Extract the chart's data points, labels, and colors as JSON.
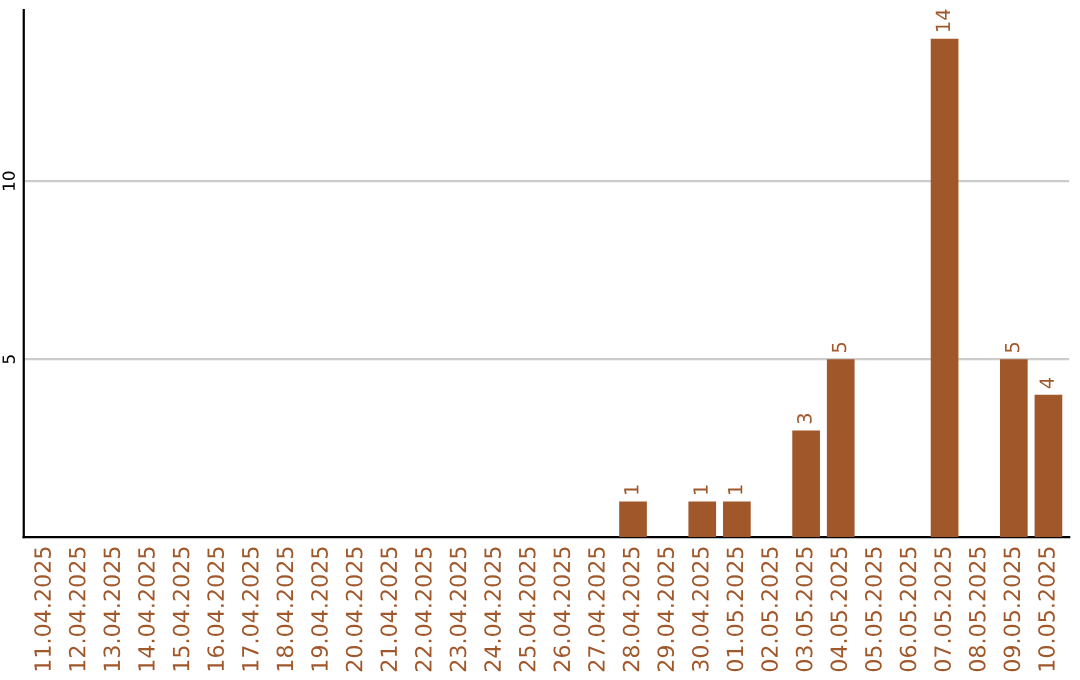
{
  "chart_data": {
    "type": "bar",
    "categories": [
      "11.04.2025",
      "12.04.2025",
      "13.04.2025",
      "14.04.2025",
      "15.04.2025",
      "16.04.2025",
      "17.04.2025",
      "18.04.2025",
      "19.04.2025",
      "20.04.2025",
      "21.04.2025",
      "22.04.2025",
      "23.04.2025",
      "24.04.2025",
      "25.04.2025",
      "26.04.2025",
      "27.04.2025",
      "28.04.2025",
      "29.04.2025",
      "30.04.2025",
      "01.05.2025",
      "02.05.2025",
      "03.05.2025",
      "04.05.2025",
      "05.05.2025",
      "06.05.2025",
      "07.05.2025",
      "08.05.2025",
      "09.05.2025",
      "10.05.2025"
    ],
    "series": [
      {
        "color": "#a0572a",
        "values": [
          0,
          0,
          0,
          0,
          0,
          0,
          0,
          0,
          0,
          0,
          0,
          0,
          0,
          0,
          0,
          0,
          0,
          1,
          0,
          1,
          1,
          0,
          3,
          5,
          0,
          0,
          14,
          0,
          5,
          4
        ],
        "value_labels": [
          null,
          null,
          null,
          null,
          null,
          null,
          null,
          null,
          null,
          null,
          null,
          null,
          null,
          null,
          null,
          null,
          null,
          "1",
          null,
          "1",
          "1",
          null,
          "3",
          "5",
          null,
          null,
          "14",
          null,
          "5",
          "4"
        ]
      }
    ],
    "ylim": [
      0,
      14.8
    ],
    "yticks": [
      5,
      10
    ],
    "grid": "y",
    "legend": false
  }
}
